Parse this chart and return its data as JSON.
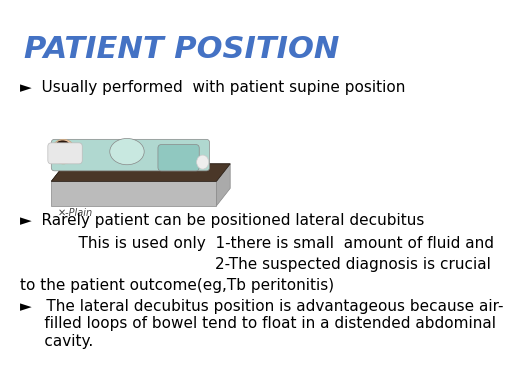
{
  "title": "PATIENT POSITION",
  "title_color": "#4472C4",
  "title_fontsize": 22,
  "background_color": "#FFFFFF",
  "bullet_color": "#000000",
  "bullet_fontsize": 11,
  "bullet1": "►  Usually performed  with patient supine position",
  "bullet2": "►  Rarely patient can be positioned lateral decubitus",
  "sub1": "            This is used only  1-there is small  amount of fluid and",
  "sub2": "                                        2-The suspected diagnosis is crucial",
  "sub3": "to the patient outcome(eg,Tb peritonitis)",
  "bullet3": "►   The lateral decubitus position is advantageous because air-\n     filled loops of bowel tend to float in a distended abdominal\n     cavity."
}
